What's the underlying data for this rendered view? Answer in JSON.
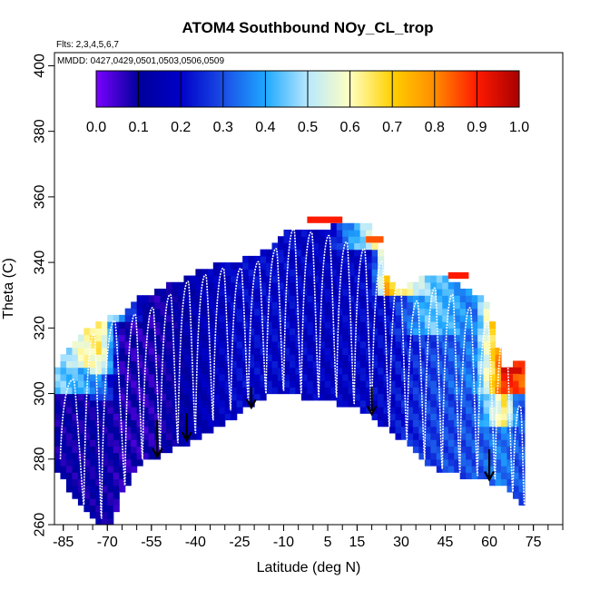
{
  "chart_data": {
    "type": "heatmap",
    "title": "ATOM4 Southbound NOy_CL_trop",
    "flights_label": "Flts: 2,3,4,5,6,7",
    "dates_label": "MMDD: 0427,0429,0501,0503,0506,0509",
    "xlabel": "Latitude (deg N)",
    "ylabel": "Theta (C)",
    "xlim": [
      -88,
      85
    ],
    "ylim": [
      260,
      404
    ],
    "xticks": [
      -85,
      -70,
      -55,
      -40,
      -25,
      -10,
      5,
      15,
      30,
      45,
      60,
      75
    ],
    "xtick_labels": [
      "-85",
      "-70",
      "-55",
      "-40",
      "-25",
      "-10",
      "5",
      "15",
      "30",
      "45",
      "60",
      "75"
    ],
    "yticks": [
      260,
      280,
      300,
      320,
      340,
      360,
      380,
      400
    ],
    "ytick_labels": [
      "260",
      "280",
      "300",
      "320",
      "340",
      "360",
      "380",
      "400"
    ],
    "colorbar": {
      "ticks": [
        0.0,
        0.1,
        0.2,
        0.3,
        0.4,
        0.5,
        0.6,
        0.7,
        0.8,
        0.9,
        1.0
      ],
      "tick_labels": [
        "0.0",
        "0.1",
        "0.2",
        "0.3",
        "0.4",
        "0.5",
        "0.6",
        "0.7",
        "0.8",
        "0.9",
        "1.0"
      ],
      "colors": [
        "#7a00ff",
        "#00009a",
        "#0000c8",
        "#1a4de6",
        "#1ea8ff",
        "#b8e8ff",
        "#ffffc0",
        "#ffd000",
        "#ff8c00",
        "#ff1a00",
        "#a80000"
      ]
    },
    "surface_boundary": {
      "lat": [
        -88,
        -85,
        -80,
        -75,
        -70,
        -65,
        -60,
        -55,
        -50,
        -45,
        -40,
        -35,
        -30,
        -25,
        -20,
        -15,
        -10,
        -5,
        0,
        5,
        10,
        15,
        20,
        25,
        30,
        35,
        40,
        45,
        50,
        55,
        60,
        65,
        70,
        72
      ],
      "theta": [
        278,
        274,
        268,
        262,
        259,
        270,
        279,
        281,
        283,
        285,
        287,
        289,
        292,
        295,
        298,
        300,
        301,
        300,
        299,
        299,
        297,
        296,
        294,
        290,
        287,
        283,
        279,
        277,
        276,
        275,
        274,
        272,
        268,
        266
      ]
    },
    "top_boundary": {
      "lat": [
        -88,
        -85,
        -80,
        -75,
        -70,
        -65,
        -60,
        -55,
        -50,
        -45,
        -40,
        -35,
        -30,
        -25,
        -20,
        -15,
        -10,
        -5,
        0,
        5,
        10,
        15,
        20,
        22,
        25,
        30,
        35,
        40,
        45,
        50,
        55,
        60,
        65,
        70,
        72
      ],
      "theta": [
        306,
        312,
        316,
        320,
        322,
        324,
        328,
        330,
        332,
        334,
        336,
        338,
        339,
        340,
        341,
        344,
        348,
        349,
        350,
        350,
        351,
        352,
        350,
        346,
        336,
        330,
        334,
        336,
        335,
        332,
        330,
        326,
        306,
        309,
        309
      ]
    },
    "concentration_field": [
      {
        "lat": -85,
        "theta_bands": [
          [
            278,
            300,
            0.1
          ],
          [
            300,
            312,
            0.45
          ]
        ]
      },
      {
        "lat": -78,
        "theta_bands": [
          [
            266,
            300,
            0.1
          ],
          [
            300,
            308,
            0.4
          ],
          [
            308,
            318,
            0.6
          ]
        ]
      },
      {
        "lat": -72,
        "theta_bands": [
          [
            260,
            298,
            0.11
          ],
          [
            298,
            306,
            0.35
          ],
          [
            306,
            312,
            0.6
          ],
          [
            312,
            322,
            0.65
          ]
        ]
      },
      {
        "lat": -65,
        "theta_bands": [
          [
            270,
            322,
            0.08
          ],
          [
            322,
            326,
            0.35
          ]
        ]
      },
      {
        "lat": -55,
        "theta_bands": [
          [
            281,
            328,
            0.08
          ]
        ]
      },
      {
        "lat": -40,
        "theta_bands": [
          [
            286,
            334,
            0.15
          ]
        ]
      },
      {
        "lat": -25,
        "theta_bands": [
          [
            295,
            338,
            0.2
          ]
        ]
      },
      {
        "lat": -10,
        "theta_bands": [
          [
            301,
            348,
            0.2
          ]
        ]
      },
      {
        "lat": 5,
        "theta_bands": [
          [
            299,
            350,
            0.18
          ]
        ]
      },
      {
        "lat": 20,
        "theta_bands": [
          [
            294,
            344,
            0.2
          ],
          [
            344,
            350,
            0.55
          ]
        ]
      },
      {
        "lat": 25,
        "theta_bands": [
          [
            290,
            330,
            0.2
          ],
          [
            330,
            336,
            0.75
          ]
        ]
      },
      {
        "lat": 40,
        "theta_bands": [
          [
            279,
            318,
            0.28
          ],
          [
            318,
            334,
            0.45
          ]
        ]
      },
      {
        "lat": 55,
        "theta_bands": [
          [
            276,
            300,
            0.3
          ],
          [
            300,
            330,
            0.35
          ]
        ]
      },
      {
        "lat": 65,
        "theta_bands": [
          [
            272,
            290,
            0.35
          ],
          [
            290,
            300,
            0.65
          ],
          [
            300,
            306,
            0.9
          ]
        ]
      },
      {
        "lat": 70,
        "theta_bands": [
          [
            268,
            300,
            0.3
          ],
          [
            300,
            309,
            0.85
          ]
        ]
      }
    ],
    "red_caps": [
      {
        "lat_range": [
          -2,
          10
        ],
        "theta": 352,
        "value": 0.9
      },
      {
        "lat_range": [
          18,
          24
        ],
        "theta": 346,
        "value": 0.85
      },
      {
        "lat_range": [
          46,
          53
        ],
        "theta": 335,
        "value": 0.9
      },
      {
        "lat_range": [
          64,
          71
        ],
        "theta": 306,
        "value": 0.95
      }
    ],
    "profile_arrows": [
      {
        "lat": -53,
        "theta_start": 292,
        "theta_end": 281
      },
      {
        "lat": -43,
        "theta_start": 294,
        "theta_end": 286
      },
      {
        "lat": -21,
        "theta_start": 302,
        "theta_end": 296
      },
      {
        "lat": 20,
        "theta_start": 302,
        "theta_end": 294
      },
      {
        "lat": 60,
        "theta_start": 283,
        "theta_end": 274
      }
    ],
    "flight_tracks": {
      "lat_points": [
        -86,
        -78,
        -72,
        -64,
        -58,
        -52,
        -46,
        -40,
        -34,
        -28,
        -22,
        -16,
        -10,
        -4,
        2,
        8,
        14,
        20,
        26,
        32,
        38,
        44,
        50,
        56,
        62,
        68,
        72
      ],
      "surface_theta": [
        280,
        266,
        262,
        272,
        280,
        283,
        285,
        288,
        292,
        295,
        298,
        300,
        301,
        300,
        299,
        299,
        297,
        294,
        290,
        286,
        280,
        277,
        276,
        275,
        274,
        270,
        266
      ],
      "peak_theta": [
        304,
        318,
        322,
        324,
        326,
        330,
        334,
        336,
        338,
        338,
        340,
        344,
        350,
        349,
        348,
        346,
        344,
        340,
        336,
        328,
        332,
        330,
        326,
        322,
        320,
        296,
        290
      ]
    }
  }
}
